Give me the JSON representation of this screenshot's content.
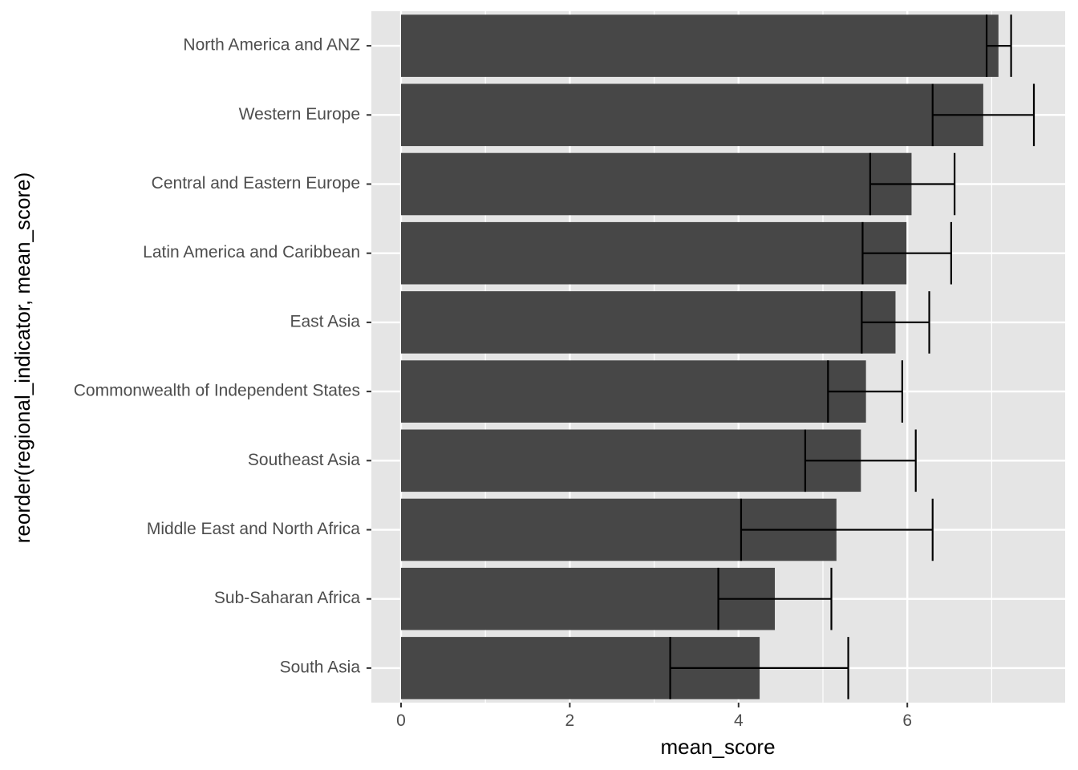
{
  "chart_data": {
    "type": "bar",
    "orientation": "horizontal",
    "title": "",
    "xlabel": "mean_score",
    "ylabel": "reorder(regional_indicator, mean_score)",
    "xlim": [
      -0.36,
      7.87
    ],
    "x_ticks": [
      0,
      2,
      4,
      6
    ],
    "x_tick_labels": [
      "0",
      "2",
      "4",
      "6"
    ],
    "grid": true,
    "theme_colors": {
      "panel": "#e5e5e5",
      "grid": "#ffffff",
      "bar": "#474747",
      "errorbar": "#000000"
    },
    "categories": [
      "North America and ANZ",
      "Western Europe",
      "Central and Eastern Europe",
      "Latin America and Caribbean",
      "East Asia",
      "Commonwealth of Independent States",
      "Southeast Asia",
      "Middle East and North Africa",
      "Sub-Saharan Africa",
      "South Asia"
    ],
    "values": [
      7.08,
      6.9,
      6.05,
      5.99,
      5.86,
      5.51,
      5.45,
      5.16,
      4.43,
      4.25
    ],
    "error_low": [
      6.94,
      6.3,
      5.56,
      5.47,
      5.46,
      5.06,
      4.79,
      4.03,
      3.76,
      3.19
    ],
    "error_high": [
      7.23,
      7.5,
      6.56,
      6.52,
      6.26,
      5.94,
      6.1,
      6.3,
      5.1,
      5.3
    ]
  }
}
